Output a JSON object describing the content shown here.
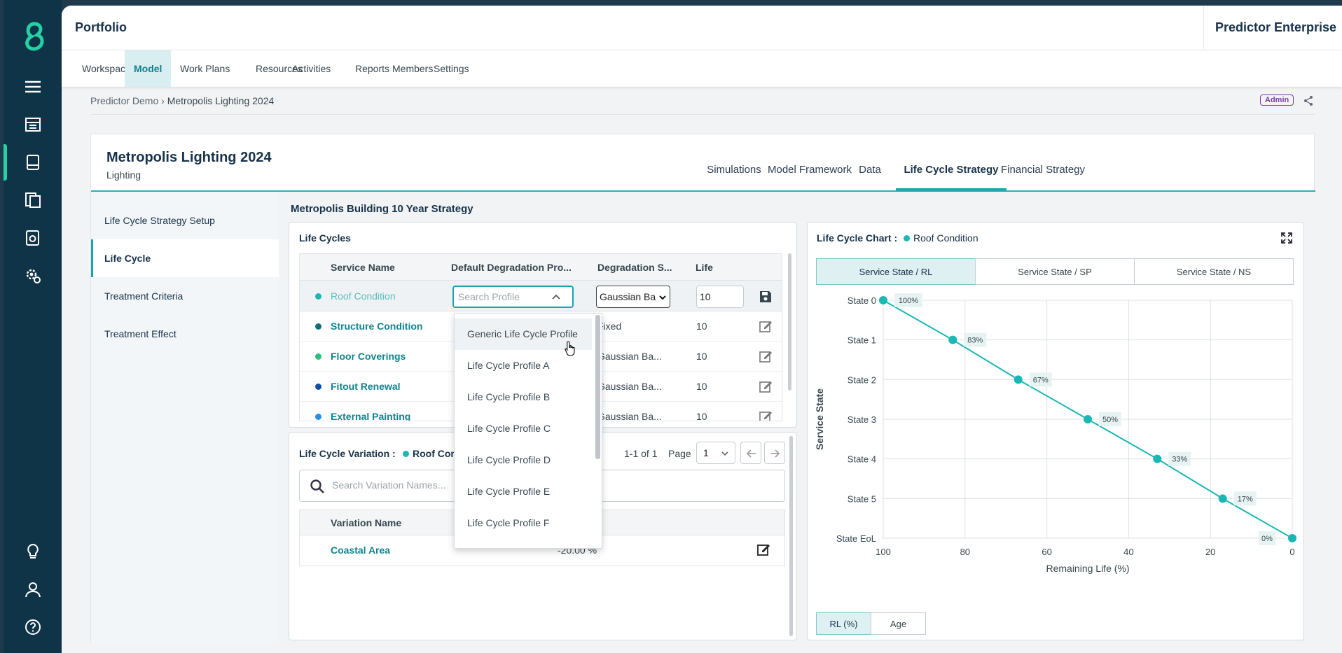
{
  "topbar": {
    "title": "Portfolio",
    "product": "Predictor Enterprise"
  },
  "nav": [
    "Workspaces",
    "Model",
    "Work Plans",
    "Resources",
    "Activities",
    "Reports",
    "Members",
    "Settings"
  ],
  "nav_active": "Model",
  "breadcrumb": {
    "parent": "Predictor Demo",
    "sep": "›",
    "current": "Metropolis Lighting 2024"
  },
  "badge": "Admin",
  "page": {
    "title": "Metropolis Lighting 2024",
    "subtitle": "Lighting"
  },
  "tabs": [
    "Simulations",
    "Model Framework",
    "Data",
    "Life Cycle Strategy",
    "Financial Strategy"
  ],
  "tab_active": "Life Cycle Strategy",
  "sidebar": [
    "Life Cycle Strategy Setup",
    "Life Cycle",
    "Treatment Criteria",
    "Treatment Effect"
  ],
  "sidebar_active": "Life Cycle",
  "strategy_title": "Metropolis Building 10 Year Strategy",
  "life_cycles": {
    "title": "Life Cycles",
    "headers": [
      "Service Name",
      "Default Degradation Pro...",
      "Degradation S...",
      "Life"
    ],
    "edit_row": {
      "name": "Roof Condition",
      "search_placeholder": "Search Profile",
      "degradation": "Gaussian Ba",
      "life": "10"
    },
    "rows": [
      {
        "name": "Structure Condition",
        "degradation": "Fixed",
        "life": "10",
        "color": "#146b7a"
      },
      {
        "name": "Floor Coverings",
        "degradation": "Gaussian Ba...",
        "life": "10",
        "color": "#28c17f"
      },
      {
        "name": "Fitout Renewal",
        "degradation": "Gaussian Ba...",
        "life": "10",
        "color": "#0d4fa3"
      },
      {
        "name": "External Painting",
        "degradation": "Gaussian Ba...",
        "life": "10",
        "color": "#2a8fe6"
      }
    ]
  },
  "dropdown_options": [
    "Generic Life Cycle Profile",
    "Life Cycle Profile A",
    "Life Cycle Profile B",
    "Life Cycle Profile C",
    "Life Cycle Profile D",
    "Life Cycle Profile E",
    "Life Cycle Profile F"
  ],
  "variation": {
    "title": "Life Cycle Variation :",
    "service": "Roof Con",
    "pager_text": "1-1 of 1",
    "page_label": "Page",
    "page_value": "1",
    "search_placeholder": "Search Variation Names...",
    "headers": [
      "Variation Name"
    ],
    "rows": [
      {
        "name": "Coastal Area",
        "value": "-20.00 %"
      }
    ]
  },
  "chart_panel": {
    "title": "Life Cycle Chart :",
    "service": "Roof Condition",
    "buttons": [
      "Service State / RL",
      "Service State / SP",
      "Service State / NS"
    ],
    "active_button": "Service State / RL",
    "toggles": [
      "RL (%)",
      "Age"
    ],
    "active_toggle": "RL (%)"
  },
  "colors": {
    "accent": "#1ab7b4",
    "roof_dot": "#1ab7b4"
  },
  "chart_data": {
    "type": "line",
    "xlabel": "Remaining Life (%)",
    "ylabel": "Service State",
    "x_ticks": [
      100,
      80,
      60,
      40,
      20,
      0
    ],
    "xlim": [
      100,
      0
    ],
    "y_categories": [
      "State 0",
      "State 1",
      "State 2",
      "State 3",
      "State 4",
      "State 5",
      "State  EoL"
    ],
    "x": [
      100,
      83,
      67,
      50,
      33,
      17,
      0
    ],
    "y": [
      "State 0",
      "State 1",
      "State 2",
      "State 3",
      "State 4",
      "State 5",
      "State  EoL"
    ],
    "labels": [
      "100%",
      "83%",
      "67%",
      "50%",
      "33%",
      "17%",
      "0%"
    ],
    "grid": true
  }
}
